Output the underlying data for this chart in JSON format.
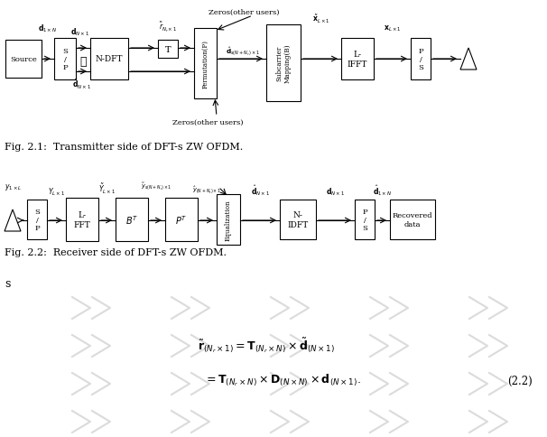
{
  "bg_color": "#ffffff",
  "fig_caption1": "Fig. 2.1:  Transmitter side of DFT-s ZW OFDM.",
  "fig_caption2": "Fig. 2.2:  Receiver side of DFT-s ZW OFDM.",
  "watermark_color": "#cccccc",
  "eq_number": "(2.2)",
  "left_text": "s"
}
